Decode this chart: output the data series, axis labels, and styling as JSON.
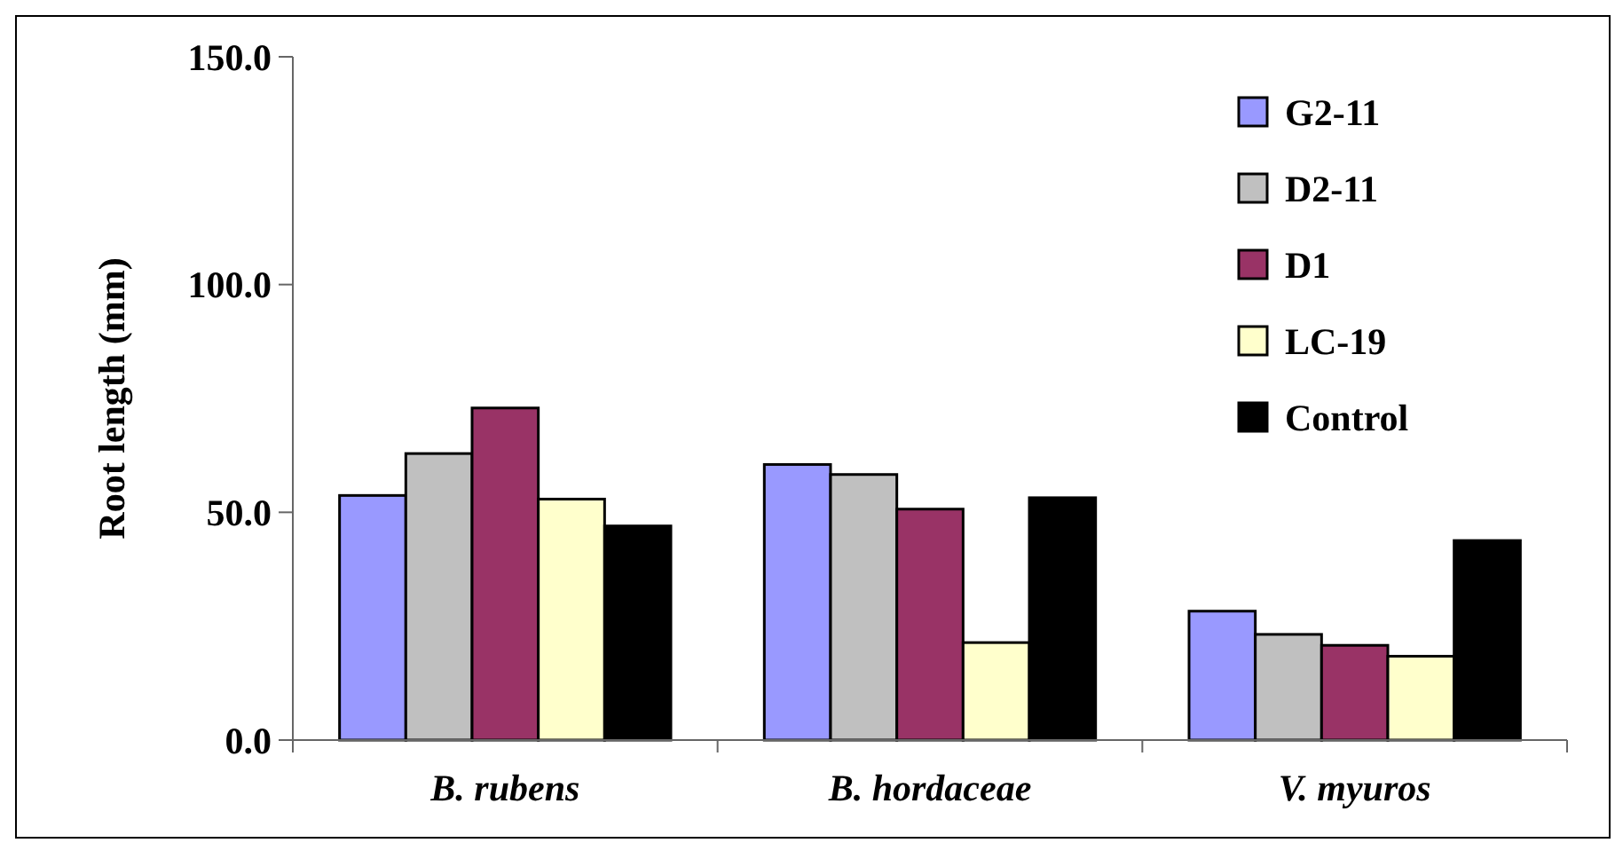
{
  "chart_data": {
    "type": "bar",
    "ylabel": "Root length (mm)",
    "categories": [
      "B. rubens",
      "B. hordaceae",
      "V. myuros"
    ],
    "series": [
      {
        "name": "G2-11",
        "color": "#9999ff",
        "values": [
          53.7,
          60.5,
          28.3
        ]
      },
      {
        "name": "D2-11",
        "color": "#c0c0c0",
        "values": [
          62.9,
          58.3,
          23.2
        ]
      },
      {
        "name": "D1",
        "color": "#993366",
        "values": [
          72.9,
          50.7,
          20.8
        ]
      },
      {
        "name": "LC-19",
        "color": "#ffffcc",
        "values": [
          52.9,
          21.4,
          18.4
        ]
      },
      {
        "name": "Control",
        "color": "#000000",
        "values": [
          47.0,
          53.2,
          43.8
        ]
      }
    ],
    "ylim": [
      0,
      150
    ],
    "yticks": [
      {
        "value": 0,
        "label": "0.0"
      },
      {
        "value": 50,
        "label": "50.0"
      },
      {
        "value": 100,
        "label": "100.0"
      },
      {
        "value": 150,
        "label": "150.0"
      }
    ],
    "legend": "top right",
    "grid": false
  }
}
